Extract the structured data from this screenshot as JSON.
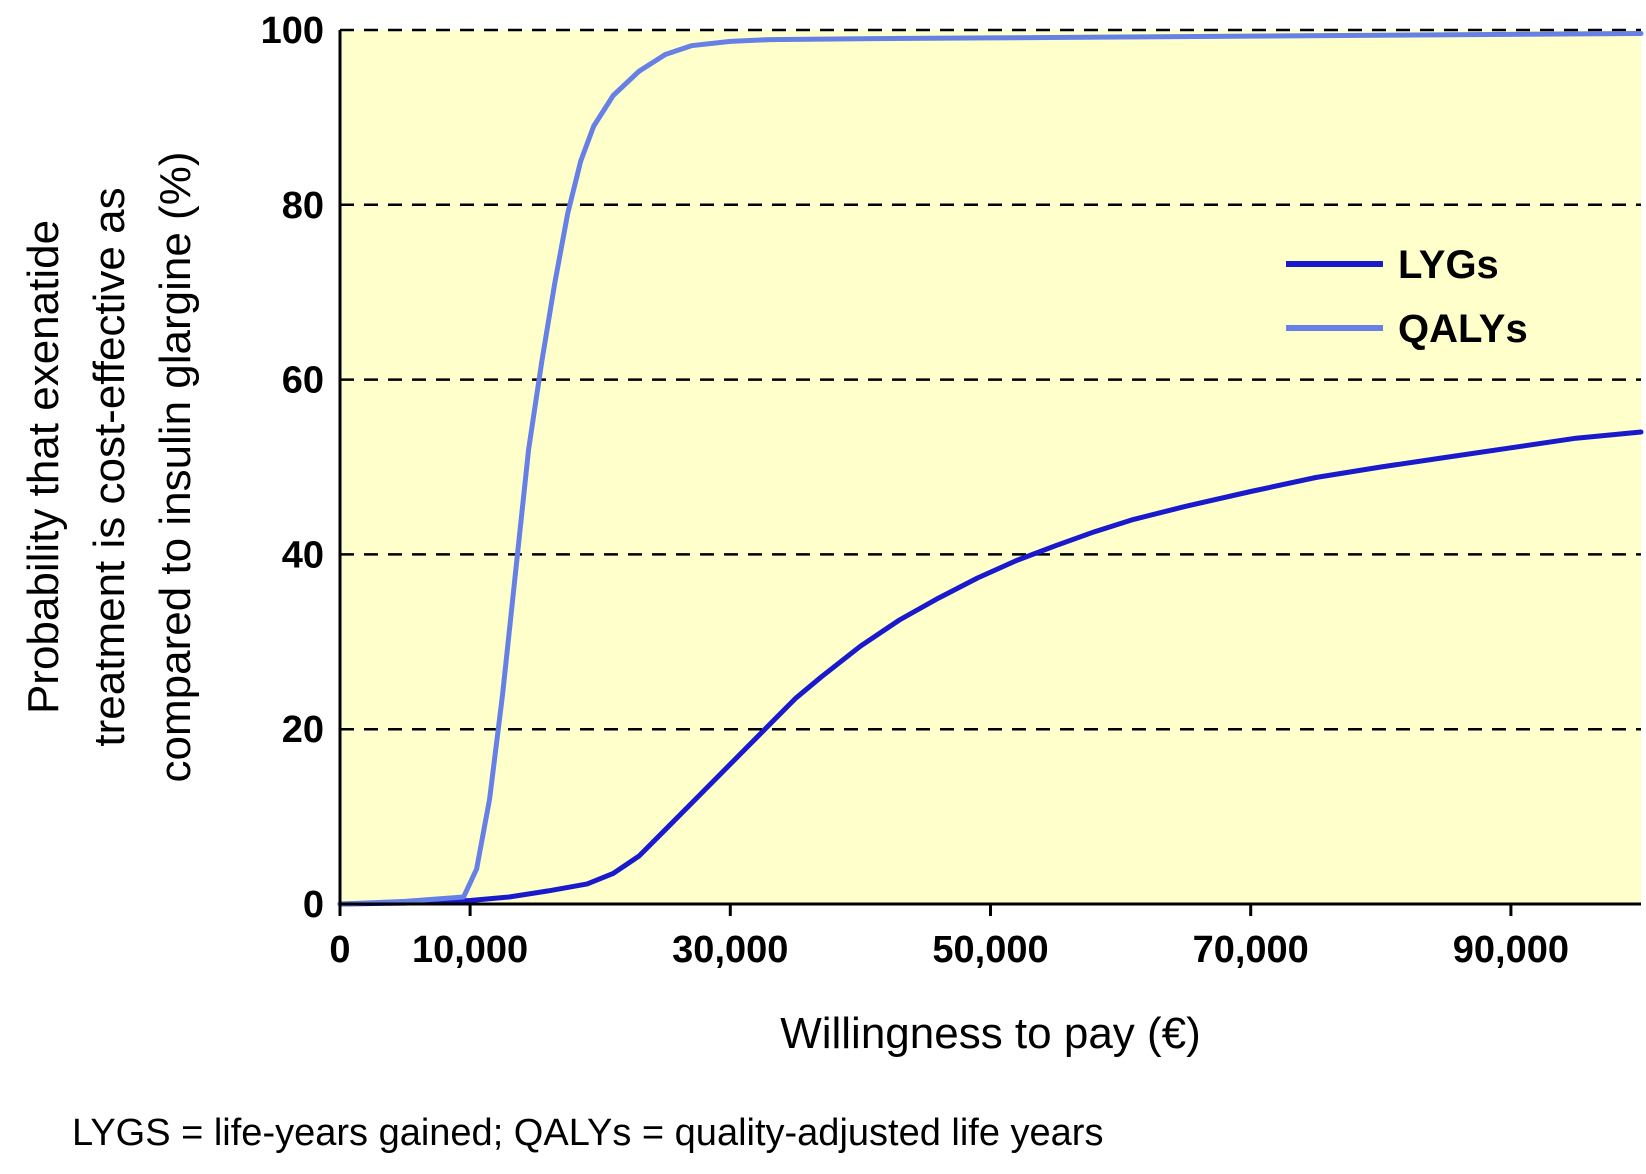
{
  "footnote": "LYGS = life-years gained; QALYs = quality-adjusted life years",
  "colors": {
    "plot_background": "#ffffcc",
    "lygs": "#1a1acc",
    "qalys": "#6680e6",
    "gridline": "#000000"
  },
  "chart_data": {
    "type": "line",
    "title": "",
    "xlabel": "Willingness to pay (€)",
    "ylabel_lines": [
      "Probability that exenatide",
      "treatment is cost-effective as",
      "compared to insulin glargine (%)"
    ],
    "xlim": [
      0,
      100000
    ],
    "ylim": [
      0,
      100
    ],
    "x_ticks": [
      0,
      10000,
      30000,
      50000,
      70000,
      90000
    ],
    "x_tick_labels": [
      "0",
      "10,000",
      "30,000",
      "50,000",
      "70,000",
      "90,000"
    ],
    "y_ticks": [
      0,
      20,
      40,
      60,
      80,
      100
    ],
    "y_tick_labels": [
      "0",
      "20",
      "40",
      "60",
      "80",
      "100"
    ],
    "grid": "horizontal dashed",
    "legend_position": "right, upper-middle",
    "series": [
      {
        "name": "LYGs",
        "color": "#1a1acc",
        "points": [
          [
            0,
            0
          ],
          [
            5000,
            0.1
          ],
          [
            10000,
            0.4
          ],
          [
            13000,
            0.8
          ],
          [
            16000,
            1.5
          ],
          [
            19000,
            2.3
          ],
          [
            21000,
            3.5
          ],
          [
            23000,
            5.5
          ],
          [
            25000,
            8.5
          ],
          [
            27000,
            11.5
          ],
          [
            29000,
            14.5
          ],
          [
            31000,
            17.5
          ],
          [
            33000,
            20.5
          ],
          [
            35000,
            23.5
          ],
          [
            37000,
            26.0
          ],
          [
            40000,
            29.5
          ],
          [
            43000,
            32.5
          ],
          [
            46000,
            35.0
          ],
          [
            49000,
            37.3
          ],
          [
            52000,
            39.3
          ],
          [
            55000,
            41.0
          ],
          [
            58000,
            42.6
          ],
          [
            61000,
            44.0
          ],
          [
            65000,
            45.5
          ],
          [
            70000,
            47.2
          ],
          [
            75000,
            48.8
          ],
          [
            80000,
            50.0
          ],
          [
            85000,
            51.1
          ],
          [
            90000,
            52.2
          ],
          [
            95000,
            53.3
          ],
          [
            100000,
            54.0
          ]
        ]
      },
      {
        "name": "QALYs",
        "color": "#6680e6",
        "points": [
          [
            0,
            0
          ],
          [
            5000,
            0.3
          ],
          [
            9500,
            0.8
          ],
          [
            10500,
            4
          ],
          [
            11500,
            12
          ],
          [
            12500,
            24
          ],
          [
            13500,
            38
          ],
          [
            14500,
            52
          ],
          [
            15500,
            62
          ],
          [
            16500,
            71
          ],
          [
            17500,
            79
          ],
          [
            18500,
            85
          ],
          [
            19500,
            89
          ],
          [
            21000,
            92.5
          ],
          [
            23000,
            95.3
          ],
          [
            25000,
            97.2
          ],
          [
            27000,
            98.2
          ],
          [
            30000,
            98.7
          ],
          [
            33000,
            98.9
          ],
          [
            40000,
            99.0
          ],
          [
            50000,
            99.1
          ],
          [
            60000,
            99.2
          ],
          [
            70000,
            99.3
          ],
          [
            80000,
            99.4
          ],
          [
            90000,
            99.5
          ],
          [
            100000,
            99.6
          ]
        ]
      }
    ]
  }
}
